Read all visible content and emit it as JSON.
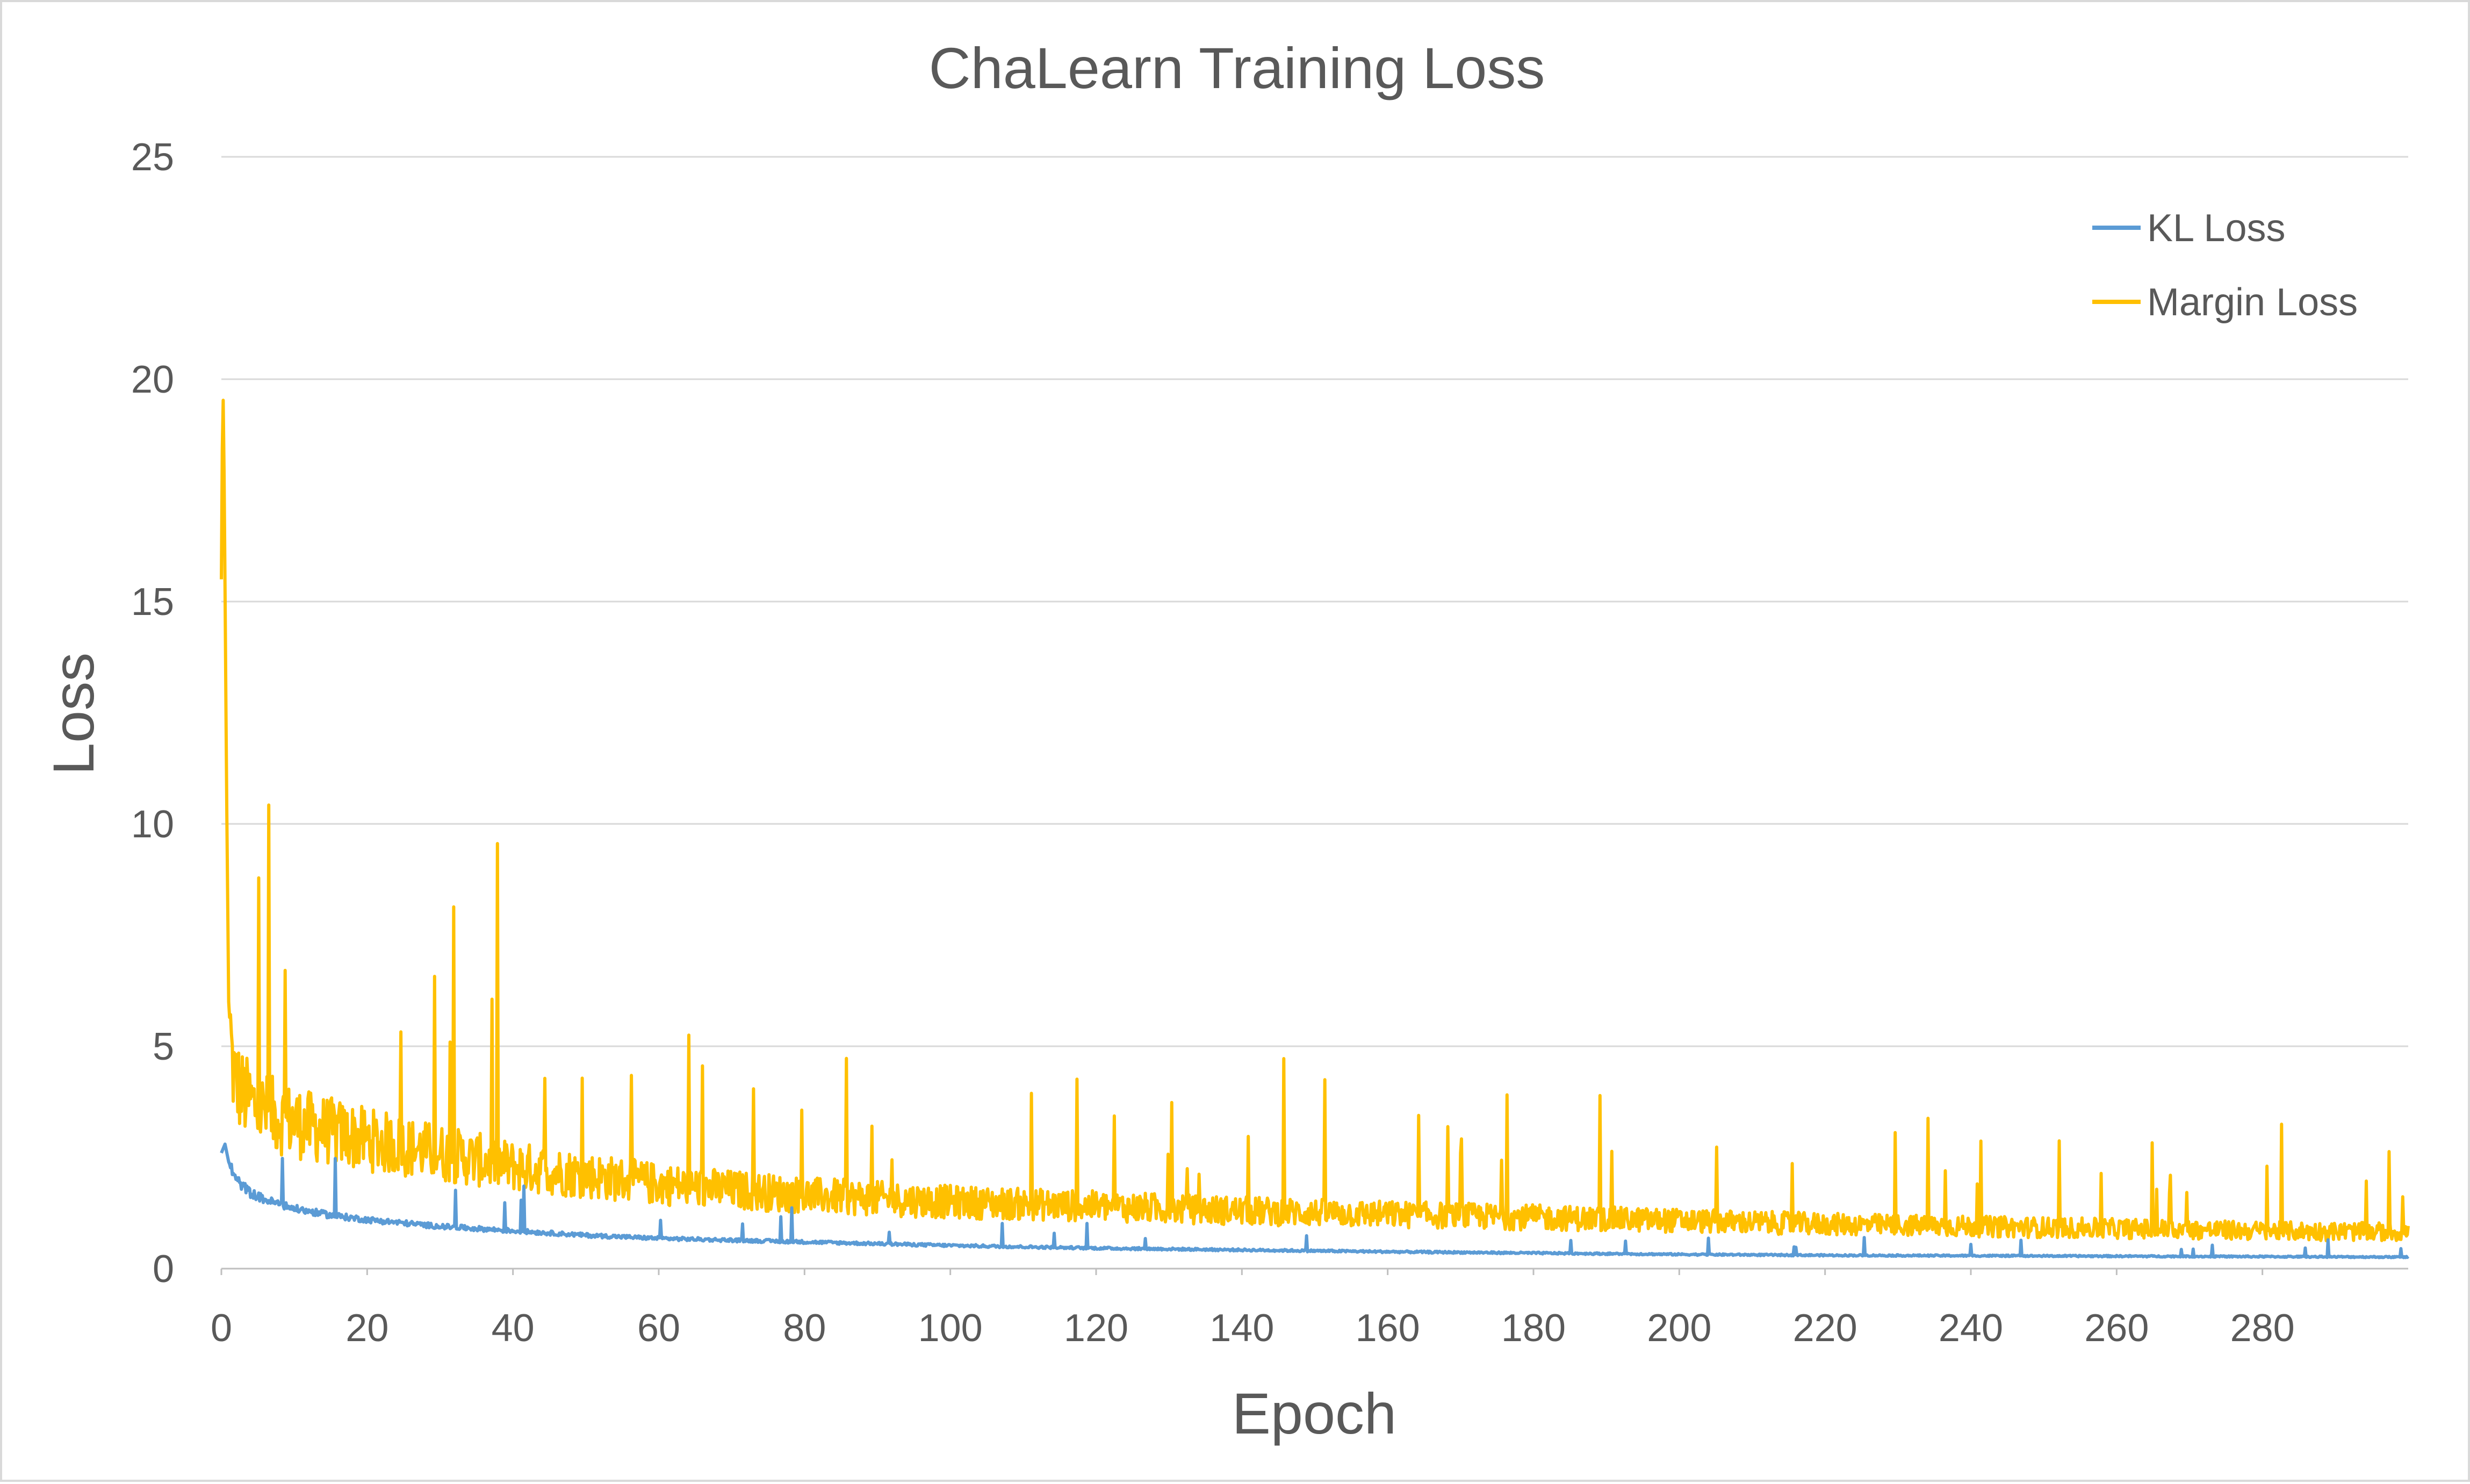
{
  "chart_data": {
    "type": "line",
    "title": "ChaLearn Training Loss",
    "xlabel": "Epoch",
    "ylabel": "Loss",
    "xlim": [
      0,
      300
    ],
    "ylim": [
      0,
      25
    ],
    "x_ticks": [
      "0",
      "20",
      "40",
      "60",
      "80",
      "100",
      "120",
      "140",
      "160",
      "180",
      "200",
      "220",
      "240",
      "260",
      "280"
    ],
    "y_ticks": [
      "0",
      "5",
      "10",
      "15",
      "20",
      "25"
    ],
    "grid": true,
    "legend_position": "top-right",
    "series": [
      {
        "name": "KL Loss",
        "color": "#5b9bd5",
        "x": [
          0,
          0.5,
          1,
          2,
          4,
          6,
          10,
          15,
          20,
          30,
          40,
          50,
          60,
          80,
          100,
          120,
          140,
          160,
          180,
          200,
          220,
          240,
          260,
          280,
          300
        ],
        "y": [
          2.6,
          2.8,
          2.4,
          2.0,
          1.7,
          1.55,
          1.35,
          1.2,
          1.1,
          0.95,
          0.85,
          0.75,
          0.68,
          0.6,
          0.52,
          0.46,
          0.42,
          0.38,
          0.35,
          0.32,
          0.3,
          0.29,
          0.28,
          0.27,
          0.26
        ]
      },
      {
        "name": "Margin Loss",
        "color": "#ffc000",
        "x": [
          0,
          0.2,
          0.4,
          0.7,
          1,
          1.5,
          2,
          3,
          5,
          8,
          12,
          20,
          30,
          40,
          50,
          60,
          80,
          100,
          120,
          140,
          160,
          180,
          200,
          220,
          240,
          260,
          280,
          300
        ],
        "y": [
          15.5,
          20.2,
          17.5,
          11.0,
          6.0,
          4.6,
          4.2,
          3.9,
          3.6,
          3.4,
          3.2,
          2.9,
          2.6,
          2.3,
          2.1,
          1.9,
          1.65,
          1.5,
          1.4,
          1.3,
          1.22,
          1.15,
          1.08,
          1.0,
          0.95,
          0.9,
          0.85,
          0.82
        ]
      }
    ]
  }
}
